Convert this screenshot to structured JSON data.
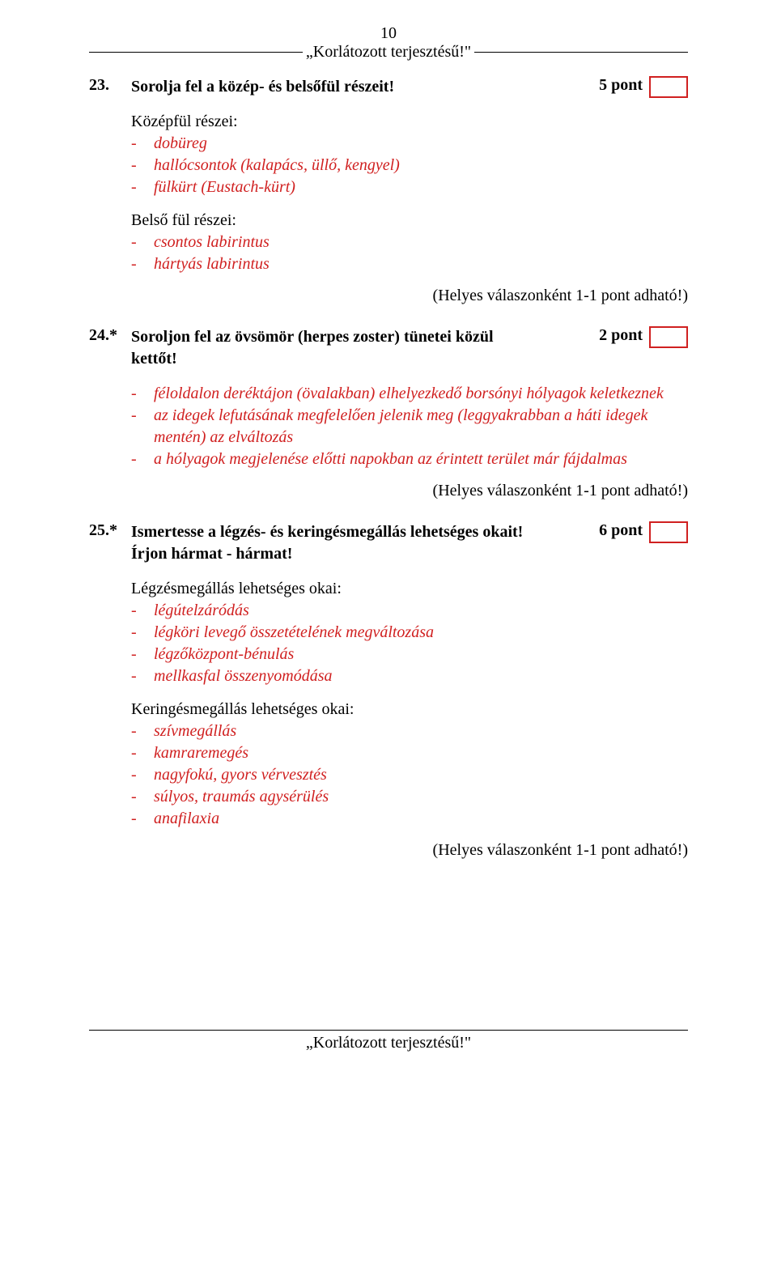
{
  "colors": {
    "answer_red": "#d02020",
    "text_black": "#000000",
    "background": "#ffffff"
  },
  "typography": {
    "family": "Times New Roman",
    "base_size_pt": 15,
    "bold_questions": true,
    "italic_answers": true
  },
  "header": {
    "page_number": "10",
    "classification": "„Korlátozott terjesztésű!\""
  },
  "footer": {
    "classification": "„Korlátozott terjesztésű!\""
  },
  "q23": {
    "number": "23.",
    "title": "Sorolja fel a közép- és belsőfül részeit!",
    "points": "5 pont",
    "group1_header": "Középfül részei:",
    "group1_items": [
      "dobüreg",
      "hallócsontok (kalapács, üllő, kengyel)",
      "fülkürt (Eustach-kürt)"
    ],
    "group2_header": "Belső fül részei:",
    "group2_items": [
      "csontos labirintus",
      "hártyás labirintus"
    ],
    "scoring": "(Helyes válaszonként 1-1 pont adható!)"
  },
  "q24": {
    "number": "24.*",
    "title_line1": "Soroljon fel az övsömör (herpes zoster) tünetei közül",
    "title_line2": "kettőt!",
    "points": "2 pont",
    "items": [
      "féloldalon deréktájon (övalakban) elhelyezkedő borsónyi hólyagok keletkeznek",
      "az idegek lefutásának megfelelően jelenik meg (leggyakrabban a háti idegek mentén) az elváltozás",
      "a hólyagok megjelenése előtti napokban az érintett terület már fájdalmas"
    ],
    "scoring": "(Helyes válaszonként 1-1 pont adható!)"
  },
  "q25": {
    "number": "25.*",
    "title_line1": "Ismertesse a légzés- és keringésmegállás lehetséges okait!",
    "title_line2": "Írjon hármat - hármat!",
    "points": "6 pont",
    "group1_header": "Légzésmegállás lehetséges okai:",
    "group1_items": [
      "légútelzáródás",
      "légköri levegő összetételének megváltozása",
      "légzőközpont-bénulás",
      "mellkasfal összenyomódása"
    ],
    "group2_header": "Keringésmegállás lehetséges okai:",
    "group2_items": [
      "szívmegállás",
      "kamraremegés",
      "nagyfokú, gyors vérvesztés",
      "súlyos, traumás agysérülés",
      "anafilaxia"
    ],
    "scoring": "(Helyes válaszonként 1-1 pont adható!)"
  }
}
